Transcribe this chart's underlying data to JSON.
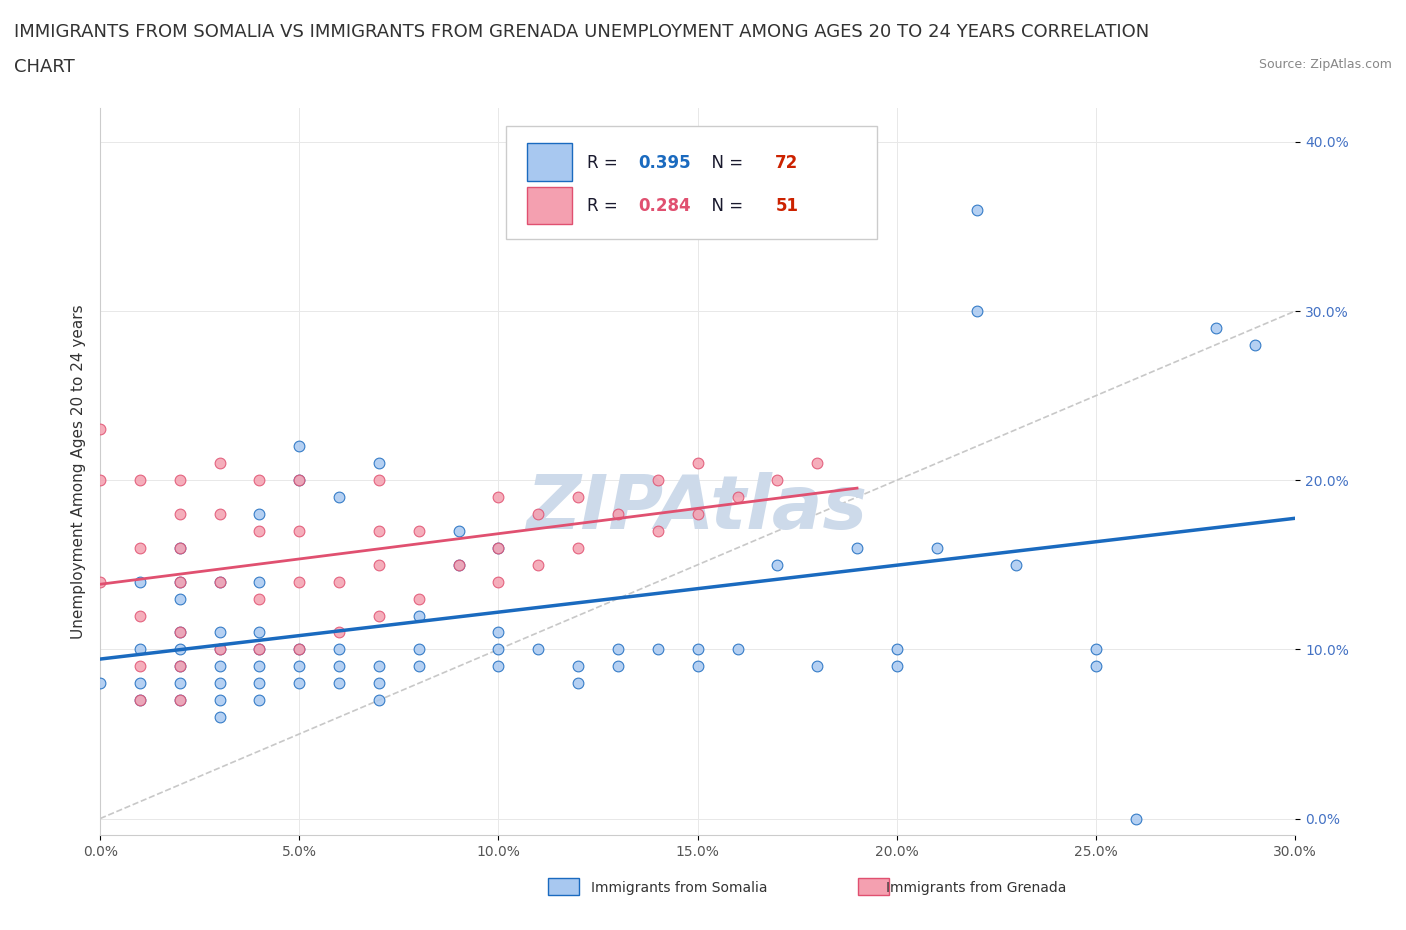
{
  "title_line1": "IMMIGRANTS FROM SOMALIA VS IMMIGRANTS FROM GRENADA UNEMPLOYMENT AMONG AGES 20 TO 24 YEARS CORRELATION",
  "title_line2": "CHART",
  "source_text": "Source: ZipAtlas.com",
  "ylabel": "Unemployment Among Ages 20 to 24 years",
  "xlim": [
    0.0,
    0.3
  ],
  "ylim": [
    -0.01,
    0.42
  ],
  "xticks": [
    0.0,
    0.05,
    0.1,
    0.15,
    0.2,
    0.25,
    0.3
  ],
  "yticks": [
    0.0,
    0.1,
    0.2,
    0.3,
    0.4
  ],
  "somalia_color": "#a8c8f0",
  "grenada_color": "#f4a0b0",
  "somalia_line_color": "#1a6abf",
  "grenada_line_color": "#e05070",
  "diag_line_color": "#c8c8c8",
  "r_somalia": "0.395",
  "n_somalia": "72",
  "r_grenada": "0.284",
  "n_grenada": "51",
  "somalia_x": [
    0.0,
    0.01,
    0.01,
    0.01,
    0.01,
    0.02,
    0.02,
    0.02,
    0.02,
    0.02,
    0.02,
    0.02,
    0.02,
    0.03,
    0.03,
    0.03,
    0.03,
    0.03,
    0.03,
    0.03,
    0.04,
    0.04,
    0.04,
    0.04,
    0.04,
    0.04,
    0.04,
    0.05,
    0.05,
    0.05,
    0.05,
    0.05,
    0.06,
    0.06,
    0.06,
    0.06,
    0.07,
    0.07,
    0.07,
    0.07,
    0.08,
    0.08,
    0.08,
    0.09,
    0.09,
    0.1,
    0.1,
    0.1,
    0.1,
    0.11,
    0.12,
    0.12,
    0.13,
    0.13,
    0.14,
    0.15,
    0.15,
    0.16,
    0.17,
    0.18,
    0.19,
    0.2,
    0.2,
    0.21,
    0.22,
    0.22,
    0.23,
    0.25,
    0.25,
    0.26,
    0.28,
    0.29
  ],
  "somalia_y": [
    0.08,
    0.07,
    0.08,
    0.1,
    0.14,
    0.07,
    0.08,
    0.09,
    0.1,
    0.11,
    0.13,
    0.14,
    0.16,
    0.06,
    0.07,
    0.08,
    0.09,
    0.1,
    0.11,
    0.14,
    0.07,
    0.08,
    0.09,
    0.1,
    0.11,
    0.14,
    0.18,
    0.08,
    0.09,
    0.1,
    0.2,
    0.22,
    0.08,
    0.09,
    0.1,
    0.19,
    0.07,
    0.08,
    0.09,
    0.21,
    0.09,
    0.1,
    0.12,
    0.15,
    0.17,
    0.09,
    0.1,
    0.11,
    0.16,
    0.1,
    0.08,
    0.09,
    0.09,
    0.1,
    0.1,
    0.09,
    0.1,
    0.1,
    0.15,
    0.09,
    0.16,
    0.09,
    0.1,
    0.16,
    0.36,
    0.3,
    0.15,
    0.09,
    0.1,
    0.0,
    0.29,
    0.28
  ],
  "grenada_x": [
    0.0,
    0.0,
    0.0,
    0.01,
    0.01,
    0.01,
    0.01,
    0.01,
    0.02,
    0.02,
    0.02,
    0.02,
    0.02,
    0.02,
    0.02,
    0.03,
    0.03,
    0.03,
    0.03,
    0.04,
    0.04,
    0.04,
    0.04,
    0.05,
    0.05,
    0.05,
    0.05,
    0.06,
    0.06,
    0.07,
    0.07,
    0.07,
    0.07,
    0.08,
    0.08,
    0.09,
    0.1,
    0.1,
    0.1,
    0.11,
    0.11,
    0.12,
    0.12,
    0.13,
    0.14,
    0.14,
    0.15,
    0.15,
    0.16,
    0.17,
    0.18
  ],
  "grenada_y": [
    0.14,
    0.2,
    0.23,
    0.07,
    0.09,
    0.12,
    0.16,
    0.2,
    0.07,
    0.09,
    0.11,
    0.14,
    0.16,
    0.18,
    0.2,
    0.1,
    0.14,
    0.18,
    0.21,
    0.1,
    0.13,
    0.17,
    0.2,
    0.1,
    0.14,
    0.17,
    0.2,
    0.11,
    0.14,
    0.12,
    0.15,
    0.17,
    0.2,
    0.13,
    0.17,
    0.15,
    0.14,
    0.16,
    0.19,
    0.15,
    0.18,
    0.16,
    0.19,
    0.18,
    0.17,
    0.2,
    0.18,
    0.21,
    0.19,
    0.2,
    0.21
  ],
  "watermark": "ZIPAtlas",
  "watermark_color": "#cddaea",
  "background_color": "#ffffff",
  "title_fontsize": 13,
  "axis_label_fontsize": 11,
  "tick_fontsize": 10,
  "legend_somalia_label": "Immigrants from Somalia",
  "legend_grenada_label": "Immigrants from Grenada"
}
